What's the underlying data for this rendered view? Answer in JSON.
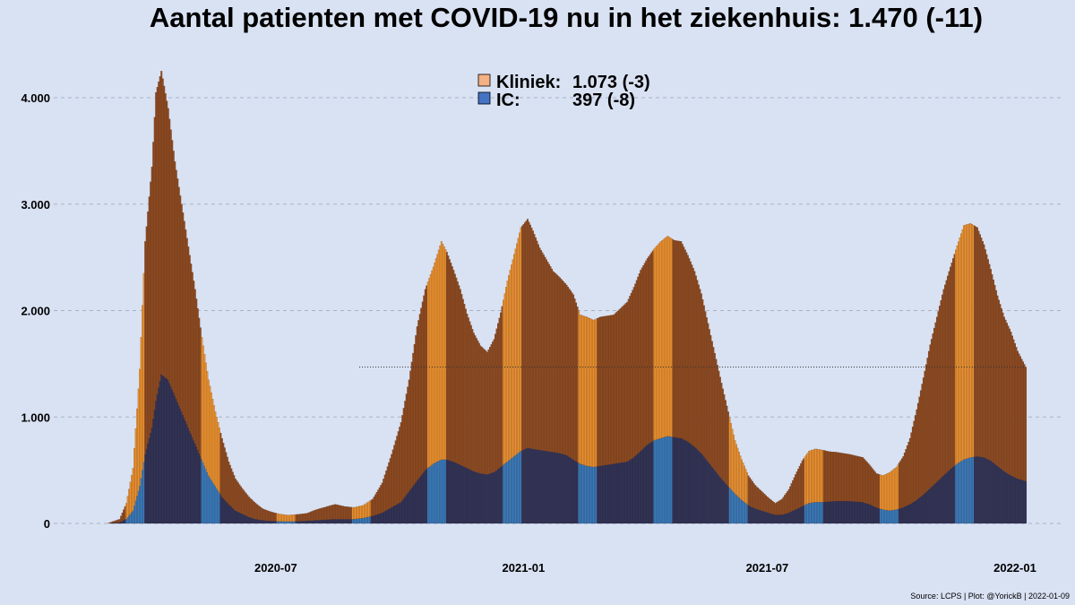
{
  "title": "Aantal patienten met COVID-19 nu in het ziekenhuis: 1.470  (-11)",
  "source": "Source: LCPS | Plot: @YorickB |  2022-01-09",
  "colors": {
    "background": "#d9e2f3",
    "kliniek_dark": "#8a4a22",
    "kliniek_light": "#e69030",
    "ic_dark": "#323254",
    "ic_light": "#3a7ab8",
    "legend_kliniek": "#f4b183",
    "legend_ic": "#4472c4"
  },
  "chart_data": {
    "type": "bar",
    "stacked": true,
    "x_range": [
      "2020-02-27",
      "2022-01-09"
    ],
    "ylim": [
      0,
      4500
    ],
    "yticks": [
      "0",
      "1.000",
      "2.000",
      "3.000",
      "4.000"
    ],
    "ytick_values": [
      0,
      1000,
      2000,
      3000,
      4000
    ],
    "xticks": [
      "2020-07",
      "2021-01",
      "2021-07",
      "2022-01"
    ],
    "xtick_dates": [
      "2020-07-01",
      "2021-01-01",
      "2021-07-01",
      "2022-01-01"
    ],
    "grid": true,
    "legend_position": "top-center",
    "reference_line": {
      "value": 1470,
      "from": "2020-09-01",
      "to": "2022-01-09",
      "style": "dotted"
    },
    "series": [
      {
        "name": "Kliniek",
        "legend_label": "Kliniek:",
        "legend_value": "1.073  (-3)",
        "points": [
          [
            "2020-02-27",
            0
          ],
          [
            "2020-03-07",
            30
          ],
          [
            "2020-03-12",
            150
          ],
          [
            "2020-03-17",
            400
          ],
          [
            "2020-03-22",
            1100
          ],
          [
            "2020-03-26",
            2000
          ],
          [
            "2020-03-31",
            2450
          ],
          [
            "2020-04-03",
            2900
          ],
          [
            "2020-04-07",
            2850
          ],
          [
            "2020-04-12",
            2550
          ],
          [
            "2020-04-17",
            2200
          ],
          [
            "2020-04-22",
            1950
          ],
          [
            "2020-04-27",
            1700
          ],
          [
            "2020-05-02",
            1450
          ],
          [
            "2020-05-07",
            1150
          ],
          [
            "2020-05-12",
            900
          ],
          [
            "2020-05-17",
            700
          ],
          [
            "2020-05-22",
            550
          ],
          [
            "2020-05-27",
            400
          ],
          [
            "2020-06-01",
            300
          ],
          [
            "2020-06-06",
            240
          ],
          [
            "2020-06-11",
            190
          ],
          [
            "2020-06-16",
            150
          ],
          [
            "2020-06-21",
            110
          ],
          [
            "2020-06-26",
            90
          ],
          [
            "2020-07-03",
            70
          ],
          [
            "2020-07-10",
            60
          ],
          [
            "2020-07-17",
            65
          ],
          [
            "2020-07-24",
            70
          ],
          [
            "2020-07-31",
            100
          ],
          [
            "2020-08-07",
            120
          ],
          [
            "2020-08-14",
            140
          ],
          [
            "2020-08-21",
            120
          ],
          [
            "2020-08-28",
            110
          ],
          [
            "2020-09-04",
            120
          ],
          [
            "2020-09-11",
            160
          ],
          [
            "2020-09-18",
            280
          ],
          [
            "2020-09-25",
            500
          ],
          [
            "2020-10-02",
            750
          ],
          [
            "2020-10-08",
            1050
          ],
          [
            "2020-10-14",
            1450
          ],
          [
            "2020-10-20",
            1700
          ],
          [
            "2020-10-26",
            1850
          ],
          [
            "2020-11-01",
            2050
          ],
          [
            "2020-11-05",
            1950
          ],
          [
            "2020-11-10",
            1800
          ],
          [
            "2020-11-15",
            1650
          ],
          [
            "2020-11-20",
            1450
          ],
          [
            "2020-11-25",
            1300
          ],
          [
            "2020-11-30",
            1200
          ],
          [
            "2020-12-05",
            1150
          ],
          [
            "2020-12-10",
            1250
          ],
          [
            "2020-12-15",
            1450
          ],
          [
            "2020-12-20",
            1700
          ],
          [
            "2020-12-25",
            1900
          ],
          [
            "2020-12-30",
            2100
          ],
          [
            "2021-01-04",
            2150
          ],
          [
            "2021-01-08",
            2050
          ],
          [
            "2021-01-13",
            1900
          ],
          [
            "2021-01-18",
            1800
          ],
          [
            "2021-01-23",
            1700
          ],
          [
            "2021-01-28",
            1650
          ],
          [
            "2021-02-02",
            1600
          ],
          [
            "2021-02-07",
            1550
          ],
          [
            "2021-02-12",
            1400
          ],
          [
            "2021-02-17",
            1400
          ],
          [
            "2021-02-22",
            1380
          ],
          [
            "2021-02-27",
            1400
          ],
          [
            "2021-03-04",
            1400
          ],
          [
            "2021-03-09",
            1400
          ],
          [
            "2021-03-14",
            1450
          ],
          [
            "2021-03-19",
            1500
          ],
          [
            "2021-03-24",
            1600
          ],
          [
            "2021-03-29",
            1700
          ],
          [
            "2021-04-03",
            1750
          ],
          [
            "2021-04-08",
            1800
          ],
          [
            "2021-04-13",
            1850
          ],
          [
            "2021-04-18",
            1880
          ],
          [
            "2021-04-23",
            1850
          ],
          [
            "2021-04-28",
            1850
          ],
          [
            "2021-05-03",
            1750
          ],
          [
            "2021-05-08",
            1650
          ],
          [
            "2021-05-13",
            1500
          ],
          [
            "2021-05-18",
            1300
          ],
          [
            "2021-05-23",
            1100
          ],
          [
            "2021-05-28",
            900
          ],
          [
            "2021-06-02",
            700
          ],
          [
            "2021-06-07",
            500
          ],
          [
            "2021-06-12",
            380
          ],
          [
            "2021-06-17",
            280
          ],
          [
            "2021-06-22",
            220
          ],
          [
            "2021-06-27",
            180
          ],
          [
            "2021-07-02",
            140
          ],
          [
            "2021-07-07",
            110
          ],
          [
            "2021-07-12",
            150
          ],
          [
            "2021-07-17",
            220
          ],
          [
            "2021-07-22",
            330
          ],
          [
            "2021-07-27",
            430
          ],
          [
            "2021-08-01",
            490
          ],
          [
            "2021-08-06",
            500
          ],
          [
            "2021-08-11",
            490
          ],
          [
            "2021-08-16",
            470
          ],
          [
            "2021-08-21",
            460
          ],
          [
            "2021-08-26",
            450
          ],
          [
            "2021-08-31",
            440
          ],
          [
            "2021-09-05",
            430
          ],
          [
            "2021-09-10",
            420
          ],
          [
            "2021-09-15",
            370
          ],
          [
            "2021-09-20",
            320
          ],
          [
            "2021-09-25",
            320
          ],
          [
            "2021-09-30",
            360
          ],
          [
            "2021-10-05",
            400
          ],
          [
            "2021-10-10",
            480
          ],
          [
            "2021-10-15",
            620
          ],
          [
            "2021-10-20",
            850
          ],
          [
            "2021-10-25",
            1100
          ],
          [
            "2021-10-30",
            1350
          ],
          [
            "2021-11-04",
            1550
          ],
          [
            "2021-11-09",
            1750
          ],
          [
            "2021-11-14",
            1900
          ],
          [
            "2021-11-19",
            2050
          ],
          [
            "2021-11-24",
            2200
          ],
          [
            "2021-11-29",
            2200
          ],
          [
            "2021-12-04",
            2150
          ],
          [
            "2021-12-09",
            2000
          ],
          [
            "2021-12-14",
            1800
          ],
          [
            "2021-12-19",
            1600
          ],
          [
            "2021-12-24",
            1450
          ],
          [
            "2021-12-29",
            1350
          ],
          [
            "2022-01-03",
            1200
          ],
          [
            "2022-01-09",
            1073
          ]
        ]
      },
      {
        "name": "IC",
        "legend_label": "IC:",
        "legend_value": "397  (-8)",
        "points": [
          [
            "2020-02-27",
            0
          ],
          [
            "2020-03-07",
            10
          ],
          [
            "2020-03-12",
            40
          ],
          [
            "2020-03-17",
            120
          ],
          [
            "2020-03-22",
            350
          ],
          [
            "2020-03-26",
            650
          ],
          [
            "2020-03-31",
            900
          ],
          [
            "2020-04-03",
            1150
          ],
          [
            "2020-04-07",
            1400
          ],
          [
            "2020-04-12",
            1350
          ],
          [
            "2020-04-17",
            1200
          ],
          [
            "2020-04-22",
            1050
          ],
          [
            "2020-04-27",
            900
          ],
          [
            "2020-05-02",
            750
          ],
          [
            "2020-05-07",
            600
          ],
          [
            "2020-05-12",
            450
          ],
          [
            "2020-05-17",
            350
          ],
          [
            "2020-05-22",
            250
          ],
          [
            "2020-05-27",
            180
          ],
          [
            "2020-06-01",
            120
          ],
          [
            "2020-06-06",
            90
          ],
          [
            "2020-06-11",
            60
          ],
          [
            "2020-06-16",
            40
          ],
          [
            "2020-06-21",
            30
          ],
          [
            "2020-06-26",
            25
          ],
          [
            "2020-07-03",
            20
          ],
          [
            "2020-07-10",
            18
          ],
          [
            "2020-07-17",
            20
          ],
          [
            "2020-07-24",
            25
          ],
          [
            "2020-07-31",
            30
          ],
          [
            "2020-08-07",
            35
          ],
          [
            "2020-08-14",
            40
          ],
          [
            "2020-08-21",
            40
          ],
          [
            "2020-08-28",
            40
          ],
          [
            "2020-09-04",
            50
          ],
          [
            "2020-09-11",
            70
          ],
          [
            "2020-09-18",
            100
          ],
          [
            "2020-09-25",
            150
          ],
          [
            "2020-10-02",
            200
          ],
          [
            "2020-10-08",
            300
          ],
          [
            "2020-10-14",
            400
          ],
          [
            "2020-10-20",
            500
          ],
          [
            "2020-10-26",
            560
          ],
          [
            "2020-11-01",
            600
          ],
          [
            "2020-11-05",
            600
          ],
          [
            "2020-11-10",
            580
          ],
          [
            "2020-11-15",
            550
          ],
          [
            "2020-11-20",
            520
          ],
          [
            "2020-11-25",
            490
          ],
          [
            "2020-11-30",
            470
          ],
          [
            "2020-12-05",
            460
          ],
          [
            "2020-12-10",
            480
          ],
          [
            "2020-12-15",
            530
          ],
          [
            "2020-12-20",
            580
          ],
          [
            "2020-12-25",
            630
          ],
          [
            "2020-12-30",
            680
          ],
          [
            "2021-01-04",
            710
          ],
          [
            "2021-01-08",
            700
          ],
          [
            "2021-01-13",
            690
          ],
          [
            "2021-01-18",
            680
          ],
          [
            "2021-01-23",
            670
          ],
          [
            "2021-01-28",
            660
          ],
          [
            "2021-02-02",
            640
          ],
          [
            "2021-02-07",
            600
          ],
          [
            "2021-02-12",
            560
          ],
          [
            "2021-02-17",
            540
          ],
          [
            "2021-02-22",
            530
          ],
          [
            "2021-02-27",
            540
          ],
          [
            "2021-03-04",
            550
          ],
          [
            "2021-03-09",
            560
          ],
          [
            "2021-03-14",
            570
          ],
          [
            "2021-03-19",
            580
          ],
          [
            "2021-03-24",
            620
          ],
          [
            "2021-03-29",
            680
          ],
          [
            "2021-04-03",
            740
          ],
          [
            "2021-04-08",
            780
          ],
          [
            "2021-04-13",
            800
          ],
          [
            "2021-04-18",
            820
          ],
          [
            "2021-04-23",
            810
          ],
          [
            "2021-04-28",
            800
          ],
          [
            "2021-05-03",
            770
          ],
          [
            "2021-05-08",
            720
          ],
          [
            "2021-05-13",
            660
          ],
          [
            "2021-05-18",
            580
          ],
          [
            "2021-05-23",
            500
          ],
          [
            "2021-05-28",
            420
          ],
          [
            "2021-06-02",
            350
          ],
          [
            "2021-06-07",
            280
          ],
          [
            "2021-06-12",
            220
          ],
          [
            "2021-06-17",
            170
          ],
          [
            "2021-06-22",
            140
          ],
          [
            "2021-06-27",
            120
          ],
          [
            "2021-07-02",
            100
          ],
          [
            "2021-07-07",
            80
          ],
          [
            "2021-07-12",
            80
          ],
          [
            "2021-07-17",
            100
          ],
          [
            "2021-07-22",
            130
          ],
          [
            "2021-07-27",
            160
          ],
          [
            "2021-08-01",
            190
          ],
          [
            "2021-08-06",
            200
          ],
          [
            "2021-08-11",
            200
          ],
          [
            "2021-08-16",
            205
          ],
          [
            "2021-08-21",
            210
          ],
          [
            "2021-08-26",
            210
          ],
          [
            "2021-08-31",
            210
          ],
          [
            "2021-09-05",
            205
          ],
          [
            "2021-09-10",
            200
          ],
          [
            "2021-09-15",
            180
          ],
          [
            "2021-09-20",
            150
          ],
          [
            "2021-09-25",
            130
          ],
          [
            "2021-09-30",
            120
          ],
          [
            "2021-10-05",
            130
          ],
          [
            "2021-10-10",
            150
          ],
          [
            "2021-10-15",
            180
          ],
          [
            "2021-10-20",
            220
          ],
          [
            "2021-10-25",
            270
          ],
          [
            "2021-10-30",
            330
          ],
          [
            "2021-11-04",
            390
          ],
          [
            "2021-11-09",
            450
          ],
          [
            "2021-11-14",
            510
          ],
          [
            "2021-11-19",
            560
          ],
          [
            "2021-11-24",
            600
          ],
          [
            "2021-11-29",
            620
          ],
          [
            "2021-12-04",
            630
          ],
          [
            "2021-12-09",
            620
          ],
          [
            "2021-12-14",
            590
          ],
          [
            "2021-12-19",
            540
          ],
          [
            "2021-12-24",
            490
          ],
          [
            "2021-12-29",
            450
          ],
          [
            "2022-01-03",
            420
          ],
          [
            "2022-01-09",
            397
          ]
        ]
      }
    ]
  }
}
